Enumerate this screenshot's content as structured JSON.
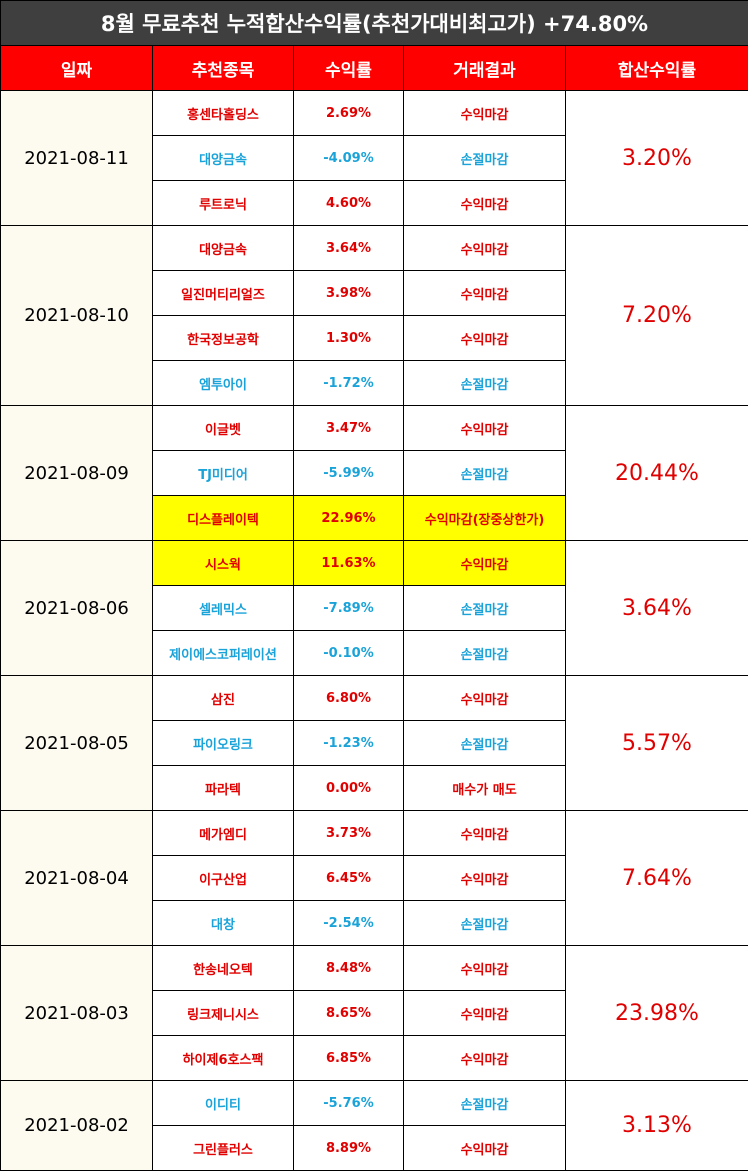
{
  "title": "8월 무료추천 누적합산수익률(추천가대비최고가) +74.80%",
  "headers": [
    "일짜",
    "추천종목",
    "수익률",
    "거래결과",
    "합산수익률"
  ],
  "colors": {
    "positive": "#e00000",
    "negative": "#1aa3d9",
    "highlight": "#ffff00",
    "header_bg": "#ff0000",
    "title_bg": "#3f3f3f"
  },
  "groups": [
    {
      "date": "2021-08-11",
      "total": "3.20%",
      "rows": [
        {
          "name": "홍센타홀딩스",
          "rate": "2.69%",
          "result": "수익마감",
          "tone": "pos",
          "highlight": false
        },
        {
          "name": "대양금속",
          "rate": "-4.09%",
          "result": "손절마감",
          "tone": "neg",
          "highlight": false
        },
        {
          "name": "루트로닉",
          "rate": "4.60%",
          "result": "수익마감",
          "tone": "pos",
          "highlight": false
        }
      ]
    },
    {
      "date": "2021-08-10",
      "total": "7.20%",
      "rows": [
        {
          "name": "대양금속",
          "rate": "3.64%",
          "result": "수익마감",
          "tone": "pos",
          "highlight": false
        },
        {
          "name": "일진머티리얼즈",
          "rate": "3.98%",
          "result": "수익마감",
          "tone": "pos",
          "highlight": false
        },
        {
          "name": "한국정보공학",
          "rate": "1.30%",
          "result": "수익마감",
          "tone": "pos",
          "highlight": false
        },
        {
          "name": "엠투아이",
          "rate": "-1.72%",
          "result": "손절마감",
          "tone": "neg",
          "highlight": false
        }
      ]
    },
    {
      "date": "2021-08-09",
      "total": "20.44%",
      "rows": [
        {
          "name": "이글벳",
          "rate": "3.47%",
          "result": "수익마감",
          "tone": "pos",
          "highlight": false
        },
        {
          "name": "TJ미디어",
          "rate": "-5.99%",
          "result": "손절마감",
          "tone": "neg",
          "highlight": false
        },
        {
          "name": "디스플레이텍",
          "rate": "22.96%",
          "result": "수익마감(장중상한가)",
          "tone": "pos",
          "highlight": true
        }
      ]
    },
    {
      "date": "2021-08-06",
      "total": "3.64%",
      "rows": [
        {
          "name": "시스웍",
          "rate": "11.63%",
          "result": "수익마감",
          "tone": "pos",
          "highlight": true
        },
        {
          "name": "셀레믹스",
          "rate": "-7.89%",
          "result": "손절마감",
          "tone": "neg",
          "highlight": false
        },
        {
          "name": "제이에스코퍼레이션",
          "rate": "-0.10%",
          "result": "손절마감",
          "tone": "neg",
          "highlight": false
        }
      ]
    },
    {
      "date": "2021-08-05",
      "total": "5.57%",
      "rows": [
        {
          "name": "삼진",
          "rate": "6.80%",
          "result": "수익마감",
          "tone": "pos",
          "highlight": false
        },
        {
          "name": "파이오링크",
          "rate": "-1.23%",
          "result": "손절마감",
          "tone": "neg",
          "highlight": false
        },
        {
          "name": "파라텍",
          "rate": "0.00%",
          "result": "매수가 매도",
          "tone": "pos",
          "highlight": false
        }
      ]
    },
    {
      "date": "2021-08-04",
      "total": "7.64%",
      "rows": [
        {
          "name": "메가엠디",
          "rate": "3.73%",
          "result": "수익마감",
          "tone": "pos",
          "highlight": false
        },
        {
          "name": "이구산업",
          "rate": "6.45%",
          "result": "수익마감",
          "tone": "pos",
          "highlight": false
        },
        {
          "name": "대창",
          "rate": "-2.54%",
          "result": "손절마감",
          "tone": "neg",
          "highlight": false
        }
      ]
    },
    {
      "date": "2021-08-03",
      "total": "23.98%",
      "rows": [
        {
          "name": "한송네오텍",
          "rate": "8.48%",
          "result": "수익마감",
          "tone": "pos",
          "highlight": false
        },
        {
          "name": "링크제니시스",
          "rate": "8.65%",
          "result": "수익마감",
          "tone": "pos",
          "highlight": false
        },
        {
          "name": "하이제6호스팩",
          "rate": "6.85%",
          "result": "수익마감",
          "tone": "pos",
          "highlight": false
        }
      ]
    },
    {
      "date": "2021-08-02",
      "total": "3.13%",
      "rows": [
        {
          "name": "이디티",
          "rate": "-5.76%",
          "result": "손절마감",
          "tone": "neg",
          "highlight": false
        },
        {
          "name": "그린플러스",
          "rate": "8.89%",
          "result": "수익마감",
          "tone": "pos",
          "highlight": false
        }
      ]
    }
  ]
}
